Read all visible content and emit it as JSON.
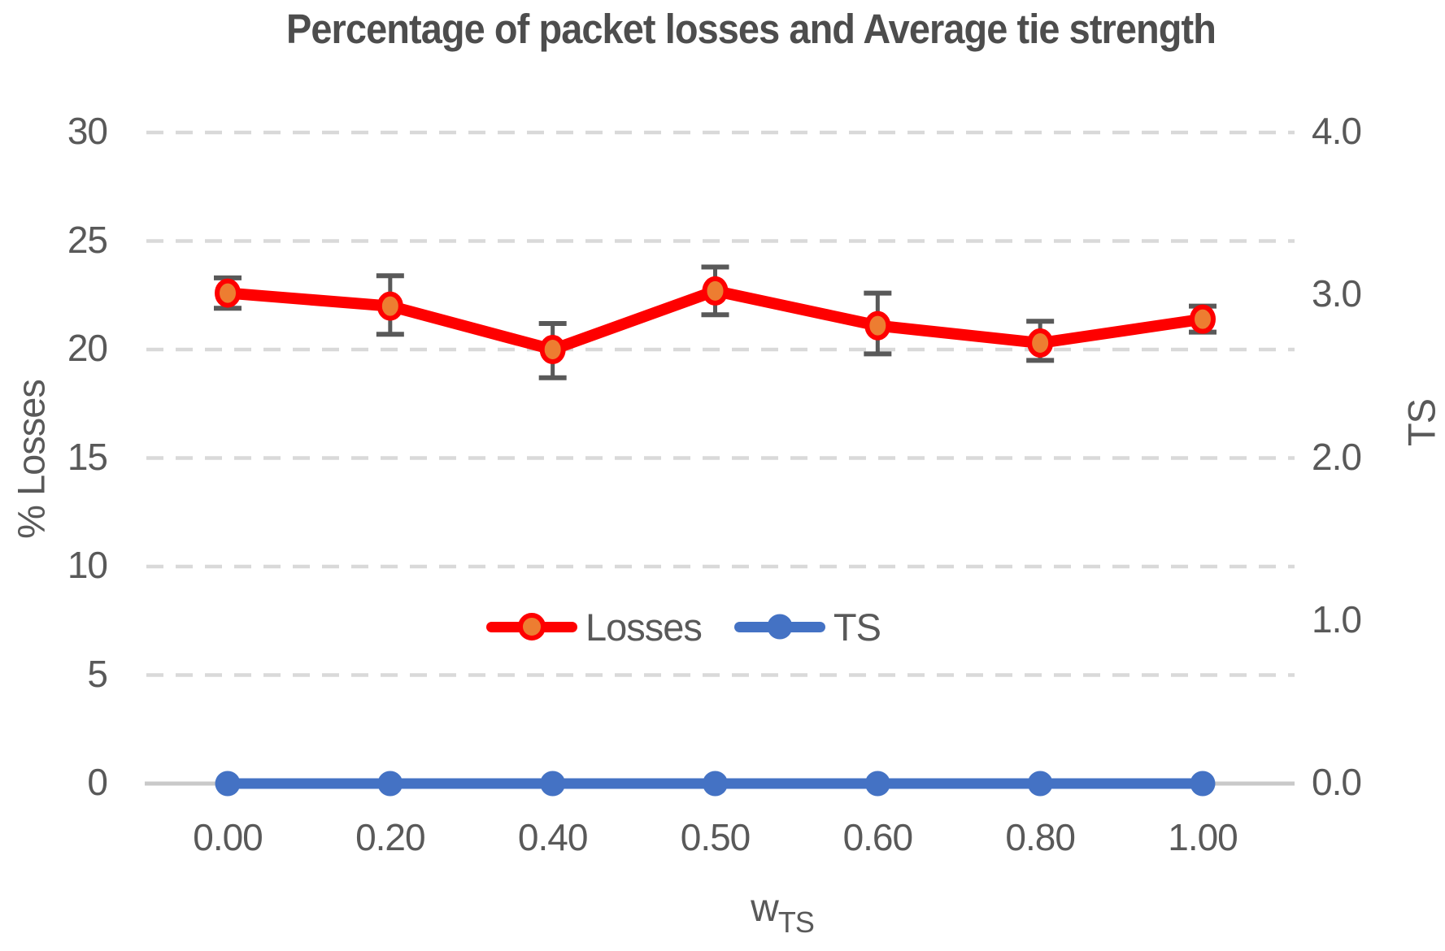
{
  "page": {
    "title": "Percentage of packet losses and Average tie strength"
  },
  "chart_data": {
    "type": "line",
    "title": "Percentage of packet losses and Average tie strength",
    "grid": "dashed horizontal gridlines at left-axis ticks",
    "legend_position": "center of plot, inline",
    "x": {
      "label_main": "w",
      "label_sub": "TS",
      "categories": [
        "0.00",
        "0.20",
        "0.40",
        "0.50",
        "0.60",
        "0.80",
        "1.00"
      ]
    },
    "y_left": {
      "label": "% Losses",
      "ticks": [
        "0",
        "5",
        "10",
        "15",
        "20",
        "25",
        "30"
      ],
      "range": [
        0,
        30
      ]
    },
    "y_right": {
      "label": "TS",
      "ticks": [
        "0.0",
        "1.0",
        "2.0",
        "3.0",
        "4.0"
      ],
      "range": [
        0,
        4
      ]
    },
    "series": [
      {
        "name": "Losses",
        "axis": "left",
        "line_color": "#FE0000",
        "marker_fill": "#ED7D31",
        "marker_stroke": "#FE0000",
        "values": [
          22.6,
          22.0,
          20.0,
          22.7,
          21.1,
          20.3,
          21.4
        ],
        "error_plus": [
          0.7,
          1.4,
          1.2,
          1.1,
          1.5,
          1.0,
          0.6
        ],
        "error_minus": [
          0.7,
          1.3,
          1.3,
          1.1,
          1.3,
          0.8,
          0.6
        ],
        "error_color": "#595959"
      },
      {
        "name": "TS",
        "axis": "right",
        "line_color": "#4472C4",
        "marker_fill": "#4472C4",
        "marker_stroke": "#4472C4",
        "values": [
          0.0,
          0.0,
          0.0,
          0.0,
          0.0,
          0.0,
          0.0
        ]
      }
    ],
    "colors": {
      "gridline": "#D9D9D9",
      "axis_line": "#C9C9C9",
      "text": "#595959"
    }
  }
}
